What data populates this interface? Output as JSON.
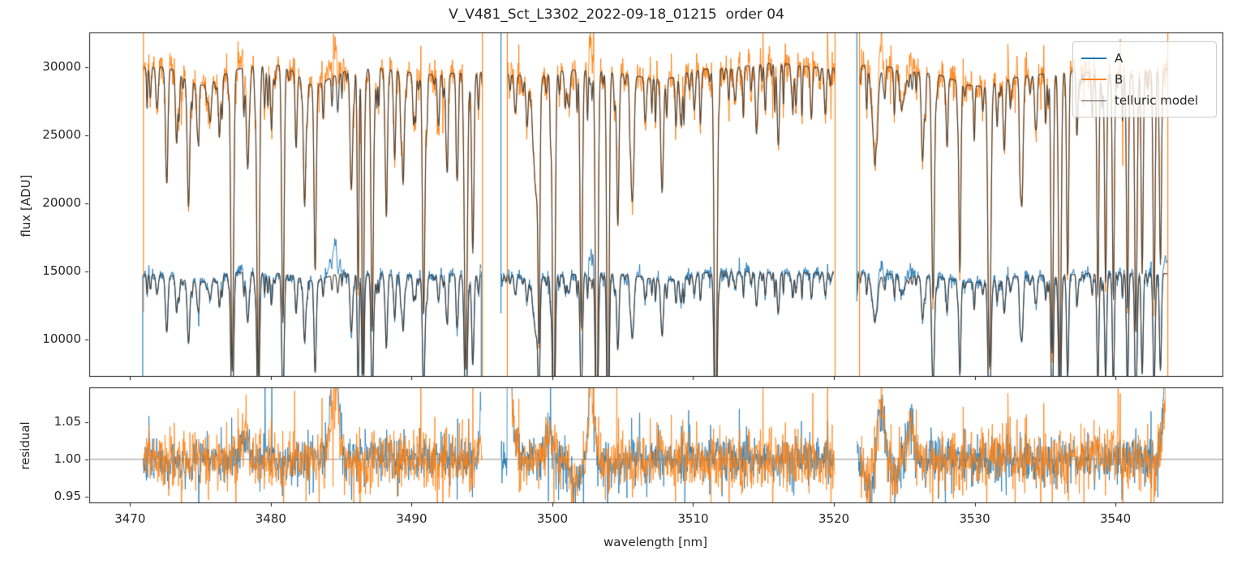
{
  "title": "V_V481_Sct_L3302_2022-09-18_01215  order 04",
  "legend": {
    "entries": [
      {
        "label": "A",
        "color": "#1f77b4",
        "line_width": 2
      },
      {
        "label": "B",
        "color": "#ff7f0e",
        "line_width": 2
      },
      {
        "label": "telluric model",
        "color": "#555555",
        "line_width": 1.5
      }
    ]
  },
  "colors": {
    "series_a": "#1f77b4",
    "series_b": "#ff7f0e",
    "telluric_model": "#555555",
    "spine": "#1a1a1a",
    "unity_line": "#6e6e6e",
    "text": "#262626"
  },
  "chart_data": {
    "type": "line",
    "title": "V_V481_Sct_L3302_2022-09-18_01215  order 04",
    "xlabel": "wavelength [nm]",
    "xlim": [
      3467.1,
      3547.6
    ],
    "xticks": [
      3470,
      3480,
      3490,
      3500,
      3510,
      3520,
      3530,
      3540
    ],
    "grid": false,
    "legend_position": "upper right",
    "panels": [
      {
        "name": "flux",
        "ylabel": "flux [ADU]",
        "ylim": [
          7300,
          32550
        ],
        "yticks": [
          10000,
          15000,
          20000,
          25000,
          30000
        ]
      },
      {
        "name": "residual",
        "ylabel": "residual",
        "ylim": [
          0.942,
          1.097
        ],
        "yticks": [
          0.95,
          1.0,
          1.05
        ],
        "hline": 1.0
      }
    ],
    "series": [
      {
        "name": "A",
        "color": "#1f77b4",
        "continuum_adu": 14820,
        "noise_sigma": 0.015,
        "segments": [
          [
            3470.9,
            3494.95
          ],
          [
            3496.35,
            3519.98
          ],
          [
            3521.63,
            3543.68
          ]
        ]
      },
      {
        "name": "B",
        "color": "#ff7f0e",
        "continuum_adu": 29830,
        "noise_sigma": 0.02,
        "segments": [
          [
            3470.95,
            3495.03
          ],
          [
            3496.8,
            3520.08
          ],
          [
            3521.82,
            3543.72
          ]
        ]
      },
      {
        "name": "telluric model",
        "color": "#555555"
      }
    ],
    "telluric_lines": [
      [
        3471.9,
        0.1,
        0.07
      ],
      [
        3472.6,
        0.2,
        0.09
      ],
      [
        3473.3,
        0.14,
        0.08
      ],
      [
        3474.15,
        0.3,
        0.09
      ],
      [
        3474.8,
        0.13,
        0.07
      ],
      [
        3475.7,
        0.1,
        0.08
      ],
      [
        3476.35,
        0.15,
        0.07
      ],
      [
        3477.25,
        0.74,
        0.09
      ],
      [
        3478.35,
        0.24,
        0.1
      ],
      [
        3479.1,
        0.76,
        0.09
      ],
      [
        3480.05,
        0.14,
        0.07
      ],
      [
        3480.85,
        0.6,
        0.08
      ],
      [
        3481.8,
        0.16,
        0.07
      ],
      [
        3482.4,
        0.32,
        0.08
      ],
      [
        3483.15,
        0.46,
        0.08
      ],
      [
        3485.7,
        0.28,
        0.08
      ],
      [
        3486.2,
        0.55,
        0.06
      ],
      [
        3486.55,
        0.74,
        0.07
      ],
      [
        3487.2,
        0.65,
        0.08
      ],
      [
        3488.2,
        0.3,
        0.09
      ],
      [
        3488.8,
        0.22,
        0.07
      ],
      [
        3489.4,
        0.28,
        0.08
      ],
      [
        3490.15,
        0.13,
        0.07
      ],
      [
        3490.85,
        0.6,
        0.08
      ],
      [
        3491.9,
        0.12,
        0.07
      ],
      [
        3492.5,
        0.22,
        0.08
      ],
      [
        3493.25,
        0.22,
        0.07
      ],
      [
        3493.85,
        0.74,
        0.1
      ],
      [
        3494.35,
        0.45,
        0.08
      ],
      [
        3497.4,
        0.08,
        0.07
      ],
      [
        3498.2,
        0.13,
        0.08
      ],
      [
        3498.85,
        0.3,
        0.18
      ],
      [
        3499.05,
        0.6,
        0.06
      ],
      [
        3500.1,
        0.93,
        0.09
      ],
      [
        3501.2,
        0.09,
        0.07
      ],
      [
        3502.05,
        0.64,
        0.08
      ],
      [
        3503.15,
        0.95,
        0.09
      ],
      [
        3503.95,
        0.92,
        0.08
      ],
      [
        3504.65,
        0.38,
        0.08
      ],
      [
        3505.7,
        0.28,
        0.1
      ],
      [
        3506.6,
        0.09,
        0.07
      ],
      [
        3507.8,
        0.28,
        0.09
      ],
      [
        3509.1,
        0.1,
        0.07
      ],
      [
        3510.1,
        0.08,
        0.07
      ],
      [
        3511.6,
        0.93,
        0.1
      ],
      [
        3513.0,
        0.08,
        0.07
      ],
      [
        3514.5,
        0.17,
        0.08
      ],
      [
        3516.05,
        0.2,
        0.08
      ],
      [
        3517.3,
        0.1,
        0.07
      ],
      [
        3518.4,
        0.08,
        0.07
      ],
      [
        3519.4,
        0.1,
        0.07
      ],
      [
        3522.9,
        0.2,
        0.2
      ],
      [
        3524.9,
        0.08,
        0.18
      ],
      [
        3526.3,
        0.22,
        0.09
      ],
      [
        3527.05,
        0.55,
        0.09
      ],
      [
        3528.0,
        0.1,
        0.07
      ],
      [
        3528.95,
        0.48,
        0.07
      ],
      [
        3531.05,
        0.72,
        0.1
      ],
      [
        3532.1,
        0.18,
        0.08
      ],
      [
        3533.35,
        0.32,
        0.09
      ],
      [
        3534.3,
        0.08,
        0.07
      ],
      [
        3535.5,
        0.7,
        0.08
      ],
      [
        3536.05,
        0.75,
        0.09
      ],
      [
        3536.6,
        0.45,
        0.07
      ],
      [
        3537.3,
        0.1,
        0.07
      ],
      [
        3538.75,
        0.55,
        0.07
      ],
      [
        3539.3,
        0.52,
        0.07
      ],
      [
        3539.85,
        0.5,
        0.07
      ],
      [
        3540.85,
        0.55,
        0.07
      ],
      [
        3541.45,
        0.6,
        0.08
      ],
      [
        3541.9,
        0.45,
        0.07
      ],
      [
        3542.75,
        0.55,
        0.07
      ],
      [
        3543.2,
        0.45,
        0.07
      ],
      [
        3475.0,
        0.05,
        1.2
      ],
      [
        3483.0,
        0.04,
        1.0
      ],
      [
        3508.0,
        0.03,
        1.5
      ],
      [
        3530.0,
        0.04,
        1.5
      ]
    ],
    "micro_line_comb": {
      "start": 3470.5,
      "end": 3544.0,
      "spacing": 0.37,
      "jitter": 0.25,
      "depth_min": 0.025,
      "depth_rand": 0.11,
      "sigma_min": 0.035,
      "sigma_rand": 0.03
    },
    "emission_features": [
      {
        "w": 3484.55,
        "sigma": 0.25,
        "ampA": 0.16,
        "ampB": 0.095
      },
      {
        "w": 3502.75,
        "sigma": 0.16,
        "ampA": 0.13,
        "ampB": 0.1
      },
      {
        "w": 3523.35,
        "sigma": 0.22,
        "ampA": 0.075,
        "ampB": 0.075
      },
      {
        "w": 3525.45,
        "sigma": 0.2,
        "ampA": 0.05,
        "ampB": 0.05
      },
      {
        "w": 3543.6,
        "sigma": 0.15,
        "ampA": 0.08,
        "ampB": 0.0
      },
      {
        "w": 3478.15,
        "sigma": 0.25,
        "ampA": 0.03,
        "ampB": 0.03
      }
    ],
    "residual_features": {
      "bumps": [
        [
          3499.8,
          0.035,
          0.25
        ],
        [
          3501.6,
          -0.03,
          0.35
        ],
        [
          3522.5,
          -0.045,
          0.3
        ],
        [
          3524.4,
          -0.03,
          0.2
        ],
        [
          3494.85,
          0.04,
          0.1
        ]
      ],
      "seg2_start_decay": {
        "w0": 3496.8,
        "amp": 0.5,
        "tau": 0.18
      },
      "seg3_end_rise": {
        "w0": 3543.75,
        "amp": 0.5,
        "tau": 0.15
      },
      "orange_spike": {
        "w": 3540.2,
        "amp": 0.13,
        "sigma": 0.015
      }
    },
    "edge_spikes": [
      {
        "w": 3470.95,
        "series": "B",
        "v0": 32550,
        "v1": 12000
      },
      {
        "w": 3495.03,
        "series": "B",
        "v0": 32550,
        "v1": 7300
      },
      {
        "w": 3496.8,
        "series": "B",
        "v0": 32550,
        "v1": 7300
      },
      {
        "w": 3520.08,
        "series": "B",
        "v0": 32550,
        "v1": 7300
      },
      {
        "w": 3521.82,
        "series": "B",
        "v0": 32550,
        "v1": 7300
      },
      {
        "w": 3543.72,
        "series": "B",
        "v0": 32550,
        "v1": 7300
      },
      {
        "w": 3470.9,
        "series": "A",
        "v0": 14700,
        "v1": 7300
      },
      {
        "w": 3494.95,
        "series": "A",
        "v0": 15000,
        "v1": 7300
      },
      {
        "w": 3496.35,
        "series": "A",
        "v0": 32550,
        "v1": 11900
      },
      {
        "w": 3521.63,
        "series": "A",
        "v0": 32550,
        "v1": 12800
      }
    ],
    "noise_spike_prob": 0.06,
    "noise_spike_gain": 2.6,
    "sample_step_nm": 0.03,
    "seed": 42
  }
}
